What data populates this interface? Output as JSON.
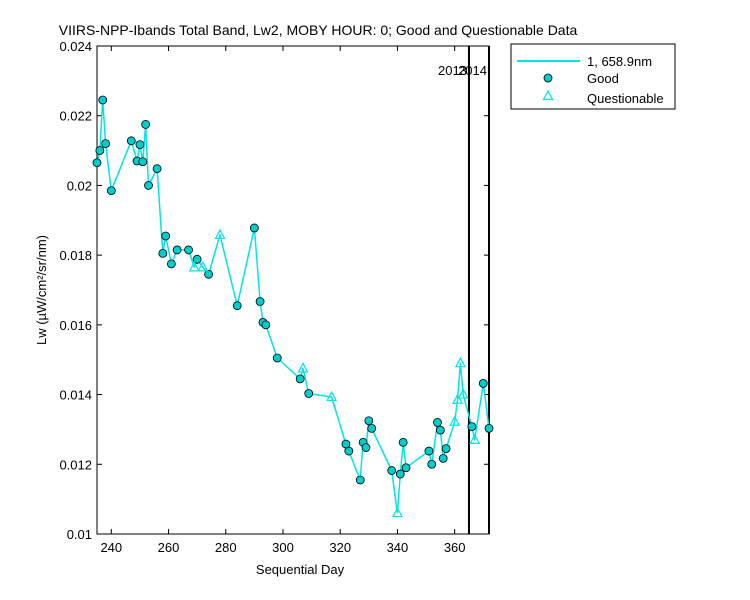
{
  "chart_data": {
    "type": "line",
    "title": "VIIRS-NPP-Ibands Total Band,  Lw2, MOBY HOUR: 0;  Good and Questionable Data",
    "xlabel": "Sequential Day",
    "ylabel": "Lw (µW/cm²/sr/nm)",
    "xlim": [
      235,
      372
    ],
    "ylim": [
      0.01,
      0.024
    ],
    "xticks": [
      240,
      260,
      280,
      300,
      320,
      340,
      360
    ],
    "yticks": [
      0.01,
      0.012,
      0.014,
      0.016,
      0.018,
      0.02,
      0.022,
      0.024
    ],
    "xtick_labels": [
      "240",
      "260",
      "280",
      "300",
      "320",
      "340",
      "360"
    ],
    "ytick_labels": [
      "0.01",
      "0.012",
      "0.014",
      "0.016",
      "0.018",
      "0.02",
      "0.022",
      "0.024"
    ],
    "grid": false,
    "legend": {
      "position": "outside-top-right",
      "entries": [
        "1, 658.9nm",
        "Good",
        "Questionable"
      ]
    },
    "colors": {
      "line": "#00E5E5",
      "good_fill": "#00CCCC",
      "marker_edge": "#000000"
    },
    "year_markers": [
      {
        "x": 365,
        "label": "2013"
      },
      {
        "x": 372,
        "label": "2014"
      }
    ],
    "series": [
      {
        "name": "1, 658.9nm",
        "x": [
          235,
          236,
          237,
          238,
          240,
          247,
          249,
          250,
          251,
          252,
          253,
          256,
          258,
          259,
          261,
          263,
          267,
          269,
          270,
          272,
          274,
          278,
          284,
          290,
          292,
          293,
          294,
          298,
          306,
          307,
          309,
          317,
          322,
          323,
          327,
          328,
          329,
          330,
          331,
          338,
          340,
          341,
          342,
          343,
          351,
          352,
          354,
          355,
          356,
          357,
          360,
          361,
          362,
          363,
          366,
          367,
          370,
          372
        ],
        "y": [
          0.02065,
          0.021,
          0.02245,
          0.0212,
          0.01985,
          0.02128,
          0.0207,
          0.02117,
          0.02068,
          0.02175,
          0.02,
          0.02048,
          0.01805,
          0.01855,
          0.01775,
          0.01815,
          0.01815,
          0.01765,
          0.01788,
          0.01765,
          0.01745,
          0.01858,
          0.01655,
          0.01878,
          0.01667,
          0.01607,
          0.016,
          0.01505,
          0.01445,
          0.01475,
          0.01403,
          0.01393,
          0.01258,
          0.01238,
          0.01155,
          0.01263,
          0.01248,
          0.01325,
          0.01303,
          0.01182,
          0.0106,
          0.01172,
          0.01263,
          0.0119,
          0.01238,
          0.012,
          0.0132,
          0.01298,
          0.01217,
          0.01245,
          0.01322,
          0.01385,
          0.0149,
          0.014,
          0.01308,
          0.0127,
          0.01432,
          0.01303
        ]
      },
      {
        "name": "Good",
        "x": [
          235,
          236,
          237,
          238,
          240,
          247,
          249,
          250,
          251,
          252,
          253,
          256,
          258,
          259,
          261,
          263,
          267,
          270,
          274,
          284,
          290,
          292,
          293,
          294,
          298,
          306,
          309,
          322,
          323,
          327,
          328,
          329,
          330,
          331,
          338,
          341,
          342,
          343,
          351,
          352,
          354,
          355,
          356,
          357,
          366,
          370,
          372
        ],
        "y": [
          0.02065,
          0.021,
          0.02245,
          0.0212,
          0.01985,
          0.02128,
          0.0207,
          0.02117,
          0.02068,
          0.02175,
          0.02,
          0.02048,
          0.01805,
          0.01855,
          0.01775,
          0.01815,
          0.01815,
          0.01788,
          0.01745,
          0.01655,
          0.01878,
          0.01667,
          0.01607,
          0.016,
          0.01505,
          0.01445,
          0.01403,
          0.01258,
          0.01238,
          0.01155,
          0.01263,
          0.01248,
          0.01325,
          0.01303,
          0.01182,
          0.01172,
          0.01263,
          0.0119,
          0.01238,
          0.012,
          0.0132,
          0.01298,
          0.01217,
          0.01245,
          0.01308,
          0.01432,
          0.01303
        ]
      },
      {
        "name": "Questionable",
        "x": [
          269,
          272,
          278,
          307,
          317,
          340,
          360,
          361,
          362,
          363,
          367
        ],
        "y": [
          0.01765,
          0.01765,
          0.01858,
          0.01475,
          0.01393,
          0.0106,
          0.01322,
          0.01385,
          0.0149,
          0.014,
          0.0127
        ]
      }
    ]
  }
}
